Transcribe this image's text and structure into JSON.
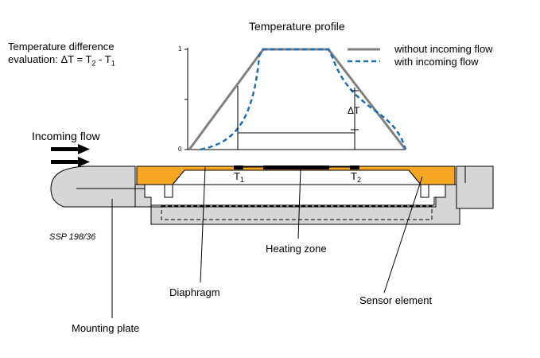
{
  "title": "Temperature profile",
  "evaluation": {
    "line1": "Temperature difference",
    "line2_prefix": "evaluation: ΔT = T",
    "t2_sub": "2",
    "minus": " - T",
    "t1_sub": "1"
  },
  "legend": {
    "without": "without incoming flow",
    "with": "with incoming flow"
  },
  "axis": {
    "y_max_label": "1",
    "y_min_label": "0"
  },
  "delta_label": "ΔT",
  "sensors": {
    "t1": "T",
    "t1_sub": "1",
    "t2": "T",
    "t2_sub": "2"
  },
  "labels": {
    "incoming_flow": "Incoming flow",
    "ssp": "SSP 198/36",
    "heating_zone": "Heating zone",
    "diaphragm": "Diaphragm",
    "sensor_element": "Sensor element",
    "mounting_plate": "Mounting plate"
  },
  "colors": {
    "without_line": "#808080",
    "with_line": "#1a6fb5",
    "sensor_fill": "#f5a623",
    "plate_fill": "#d6d6d6",
    "heater": "#000000"
  }
}
